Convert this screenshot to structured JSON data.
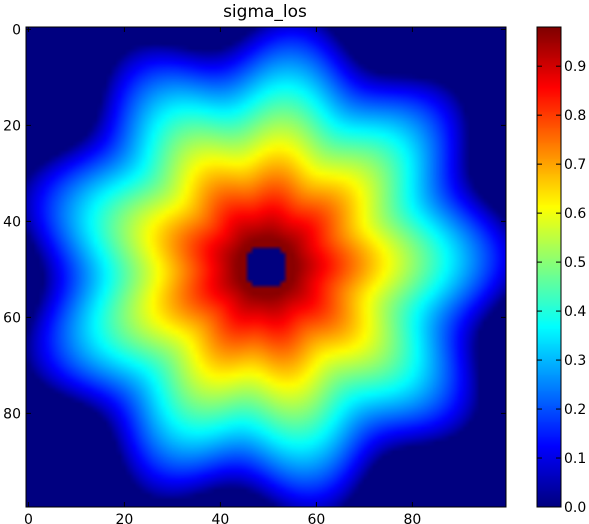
{
  "chart_data": {
    "type": "heatmap",
    "title": "sigma_los",
    "xlabel": "",
    "ylabel": "",
    "xlim": [
      0,
      99
    ],
    "ylim": [
      0,
      99
    ],
    "y_inverted": true,
    "grid": false,
    "x_ticks": [
      0,
      20,
      40,
      60,
      80
    ],
    "x_tick_labels": [
      "0",
      "20",
      "40",
      "60",
      "80"
    ],
    "y_ticks": [
      0,
      20,
      40,
      60,
      80
    ],
    "y_tick_labels": [
      "0",
      "20",
      "40",
      "60",
      "80"
    ],
    "colormap": "jet",
    "colorbar": {
      "range": [
        0,
        0.98
      ],
      "ticks": [
        0.0,
        0.1,
        0.2,
        0.3,
        0.4,
        0.5,
        0.6,
        0.7,
        0.8,
        0.9
      ],
      "tick_labels": [
        "0.0",
        "0.1",
        "0.2",
        "0.3",
        "0.4",
        "0.5",
        "0.6",
        "0.7",
        "0.8",
        "0.9"
      ]
    },
    "field_description": {
      "center": [
        49.5,
        49.5
      ],
      "peak_value": 0.97,
      "peak_radius": 6,
      "inner_hole_radius": 4.5,
      "outer_radius": 50,
      "lobes": 9,
      "lobe_amplitude": 0.07
    },
    "colors": {
      "background": "#00007f",
      "frame": "#000000"
    }
  }
}
